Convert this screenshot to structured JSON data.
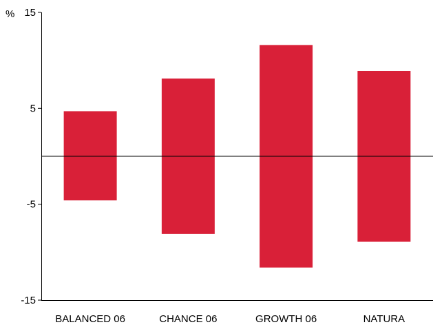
{
  "chart_data": {
    "type": "bar",
    "title": "",
    "xlabel": "",
    "ylabel": "%",
    "categories": [
      "BALANCED 06",
      "CHANCE 06",
      "GROWTH 06",
      "NATURA"
    ],
    "series": [
      {
        "low": [
          -4.6,
          -8.1,
          -11.6,
          -8.9
        ],
        "high": [
          4.7,
          8.1,
          11.6,
          8.9
        ]
      }
    ],
    "ylim": [
      -15,
      15
    ],
    "yticks": [
      "-15",
      "-5",
      "5",
      "15"
    ],
    "ytick_values": [
      -15,
      -5,
      5,
      15
    ],
    "grid": false,
    "legend": "none",
    "bar_color": "#d92038",
    "axis_color": "#000000"
  }
}
